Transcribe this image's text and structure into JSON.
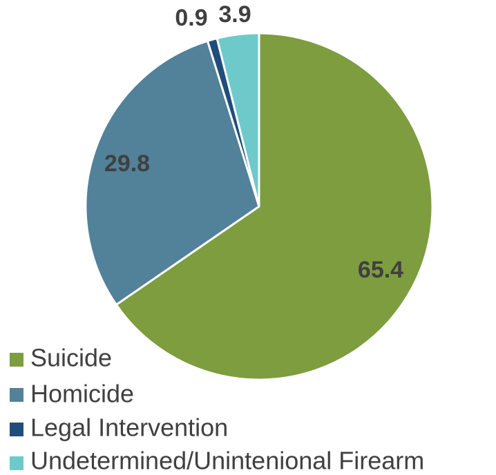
{
  "chart_data": {
    "type": "pie",
    "categories": [
      "Suicide",
      "Homicide",
      "Legal Intervention",
      "Undetermined/Uninteneional Firearm"
    ],
    "values": [
      65.4,
      29.8,
      0.9,
      3.9
    ],
    "value_labels": [
      "65.4",
      "29.8",
      "0.9",
      "3.9"
    ],
    "colors": [
      "#7d9d3f",
      "#52819a",
      "#1f4e7a",
      "#6ecaca"
    ],
    "start_angle_deg": 0,
    "direction": "clockwise",
    "legend_position": "bottom-left",
    "legend": [
      {
        "label": "Suicide",
        "color": "#7d9d3f"
      },
      {
        "label": "Homicide",
        "color": "#52819a"
      },
      {
        "label": "Legal Intervention",
        "color": "#1f4e7a"
      },
      {
        "label": "Undetermined/Unintenional Firearm",
        "color": "#6ecaca"
      }
    ]
  }
}
